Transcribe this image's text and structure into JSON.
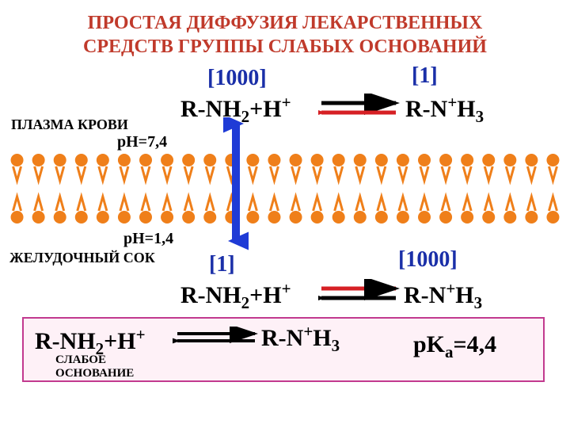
{
  "colors": {
    "title": "#c03a2b",
    "conc_blue": "#1a2fa8",
    "membrane_head": "#ef7f1a",
    "membrane_tail": "#ef7f1a",
    "arrow_blue": "#1f3bd6",
    "arrow_red": "#d62024",
    "arrow_black": "#000000",
    "box_border": "#c23a8f",
    "box_fill": "#fef1f7"
  },
  "title_line1": "ПРОСТАЯ ДИФФУЗИЯ ЛЕКАРСТВЕННЫХ",
  "title_line2": "СРЕДСТВ ГРУППЫ СЛАБЫХ ОСНОВАНИЙ",
  "top": {
    "conc_left": "[1000]",
    "conc_right": "[1]",
    "formula_left": "R-NH₂+H⁺",
    "formula_right": "R-N⁺H₃",
    "side_label": "ПЛАЗМА КРОВИ",
    "ph": "рН=7,4"
  },
  "bottom": {
    "conc_left": "[1]",
    "conc_right": "[1000]",
    "formula_left": "R-NH₂+H⁺",
    "formula_right": "R-N⁺H₃",
    "side_label": "ЖЕЛУДОЧНЫЙ СОК",
    "ph": "рН=1,4"
  },
  "eq": {
    "left": "R-NH₂+H⁺",
    "right": "R-N⁺H₃",
    "pka": "pKₐ=4,4",
    "note1": "СЛАБОЕ",
    "note2": "ОСНОВАНИЕ"
  },
  "membrane": {
    "lipid_count": 26,
    "head_radius": 8,
    "tail_length": 18
  }
}
